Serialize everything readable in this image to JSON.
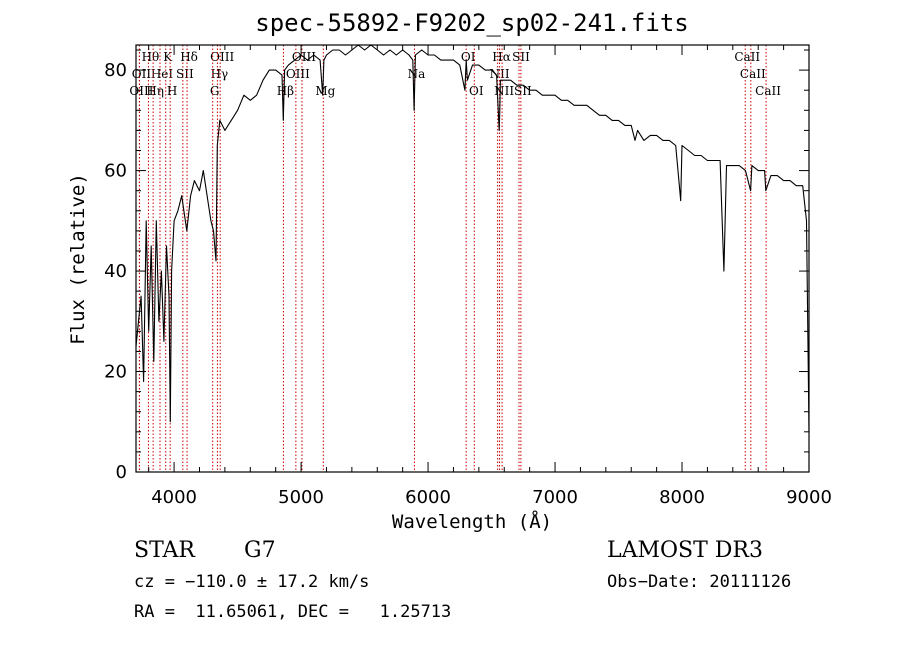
{
  "chart_data": {
    "type": "line",
    "title": "spec-55892-F9202_sp02-241.fits",
    "xlabel": "Wavelength (Å)",
    "ylabel": "Flux (relative)",
    "xlim": [
      3700,
      9000
    ],
    "ylim": [
      0,
      85
    ],
    "xticks": [
      4000,
      5000,
      6000,
      7000,
      8000,
      9000
    ],
    "yticks": [
      0,
      20,
      40,
      60,
      80
    ],
    "grid": false,
    "legend": "none",
    "series": [
      {
        "x": [
          3700,
          3720,
          3740,
          3760,
          3780,
          3800,
          3820,
          3840,
          3860,
          3880,
          3900,
          3920,
          3940,
          3960,
          3970,
          3980,
          4000,
          4030,
          4060,
          4100,
          4130,
          4160,
          4200,
          4230,
          4260,
          4290,
          4310,
          4330,
          4340,
          4360,
          4400,
          4450,
          4500,
          4550,
          4600,
          4650,
          4700,
          4750,
          4800,
          4850,
          4860,
          4870,
          4900,
          4950,
          5000,
          5050,
          5100,
          5150,
          5170,
          5180,
          5200,
          5250,
          5300,
          5350,
          5400,
          5450,
          5500,
          5550,
          5600,
          5650,
          5700,
          5750,
          5800,
          5850,
          5880,
          5890,
          5900,
          5950,
          6000,
          6050,
          6100,
          6150,
          6200,
          6250,
          6290,
          6300,
          6310,
          6350,
          6400,
          6450,
          6500,
          6540,
          6560,
          6565,
          6570,
          6600,
          6650,
          6700,
          6750,
          6800,
          6850,
          6900,
          6950,
          7000,
          7050,
          7100,
          7150,
          7200,
          7250,
          7300,
          7350,
          7400,
          7450,
          7500,
          7550,
          7600,
          7630,
          7650,
          7700,
          7750,
          7800,
          7850,
          7900,
          7950,
          7990,
          8000,
          8050,
          8100,
          8150,
          8200,
          8250,
          8300,
          8330,
          8350,
          8400,
          8450,
          8500,
          8540,
          8550,
          8600,
          8650,
          8660,
          8700,
          8750,
          8800,
          8850,
          8900,
          8950,
          8980,
          9000
        ],
        "y": [
          25,
          30,
          35,
          18,
          50,
          28,
          45,
          22,
          50,
          30,
          40,
          26,
          45,
          35,
          10,
          40,
          50,
          52,
          55,
          48,
          55,
          58,
          56,
          60,
          55,
          50,
          48,
          42,
          65,
          70,
          68,
          70,
          72,
          75,
          74,
          75,
          78,
          80,
          80,
          79,
          70,
          80,
          81,
          82,
          83,
          82,
          83,
          82,
          75,
          82,
          83,
          84,
          84,
          83,
          84,
          85,
          84,
          85,
          84,
          83,
          84,
          83,
          84,
          83,
          82,
          72,
          83,
          84,
          83,
          83,
          82,
          82,
          82,
          81,
          76,
          82,
          78,
          81,
          81,
          80,
          80,
          79,
          68,
          72,
          78,
          78,
          78,
          77,
          77,
          76,
          76,
          75,
          75,
          75,
          74,
          74,
          73,
          73,
          73,
          72,
          71,
          71,
          70,
          70,
          69,
          69,
          66,
          68,
          66,
          67,
          67,
          66,
          66,
          65,
          54,
          65,
          64,
          63,
          63,
          62,
          62,
          62,
          40,
          61,
          61,
          61,
          60,
          56,
          61,
          60,
          60,
          56,
          59,
          59,
          58,
          58,
          57,
          57,
          50,
          8
        ]
      }
    ],
    "spectral_lines": [
      {
        "label": "Hθ",
        "x": 3798,
        "row": 1
      },
      {
        "label": "OII",
        "x": 3727,
        "row": 2
      },
      {
        "label": "OIII",
        "x": 3727,
        "row": 3
      },
      {
        "label": "K",
        "x": 3934,
        "row": 1
      },
      {
        "label": "HeI",
        "x": 3889,
        "row": 2
      },
      {
        "label": "Hη",
        "x": 3835,
        "row": 3
      },
      {
        "label": "SII",
        "x": 4069,
        "row": 2
      },
      {
        "label": "H",
        "x": 3969,
        "row": 3
      },
      {
        "label": "Hδ",
        "x": 4102,
        "row": 1
      },
      {
        "label": "OIII",
        "x": 4363,
        "row": 1
      },
      {
        "label": "Hγ",
        "x": 4341,
        "row": 2
      },
      {
        "label": "G",
        "x": 4304,
        "row": 3
      },
      {
        "label": "OIII",
        "x": 5007,
        "row": 1
      },
      {
        "label": "OIII",
        "x": 4959,
        "row": 2
      },
      {
        "label": "Hβ",
        "x": 4861,
        "row": 3
      },
      {
        "label": "Mg",
        "x": 5175,
        "row": 3
      },
      {
        "label": "Na",
        "x": 5893,
        "row": 2
      },
      {
        "label": "OI",
        "x": 6300,
        "row": 1
      },
      {
        "label": "OI",
        "x": 6364,
        "row": 3
      },
      {
        "label": "Hα",
        "x": 6563,
        "row": 1
      },
      {
        "label": "SII",
        "x": 6716,
        "row": 1
      },
      {
        "label": "NII",
        "x": 6548,
        "row": 2
      },
      {
        "label": "NII",
        "x": 6583,
        "row": 3
      },
      {
        "label": "SII",
        "x": 6731,
        "row": 3
      },
      {
        "label": "CaII",
        "x": 8498,
        "row": 1
      },
      {
        "label": "CaII",
        "x": 8542,
        "row": 2
      },
      {
        "label": "CaII",
        "x": 8662,
        "row": 3
      }
    ]
  },
  "info": {
    "object_class": "STAR",
    "subclass": "G7",
    "survey": "LAMOST DR3",
    "redshift": "cz = −110.0 ± 17.2 km/s",
    "obs_date": "Obs−Date: 20111126",
    "coords": "RA =  11.65061, DEC =   1.25713"
  }
}
